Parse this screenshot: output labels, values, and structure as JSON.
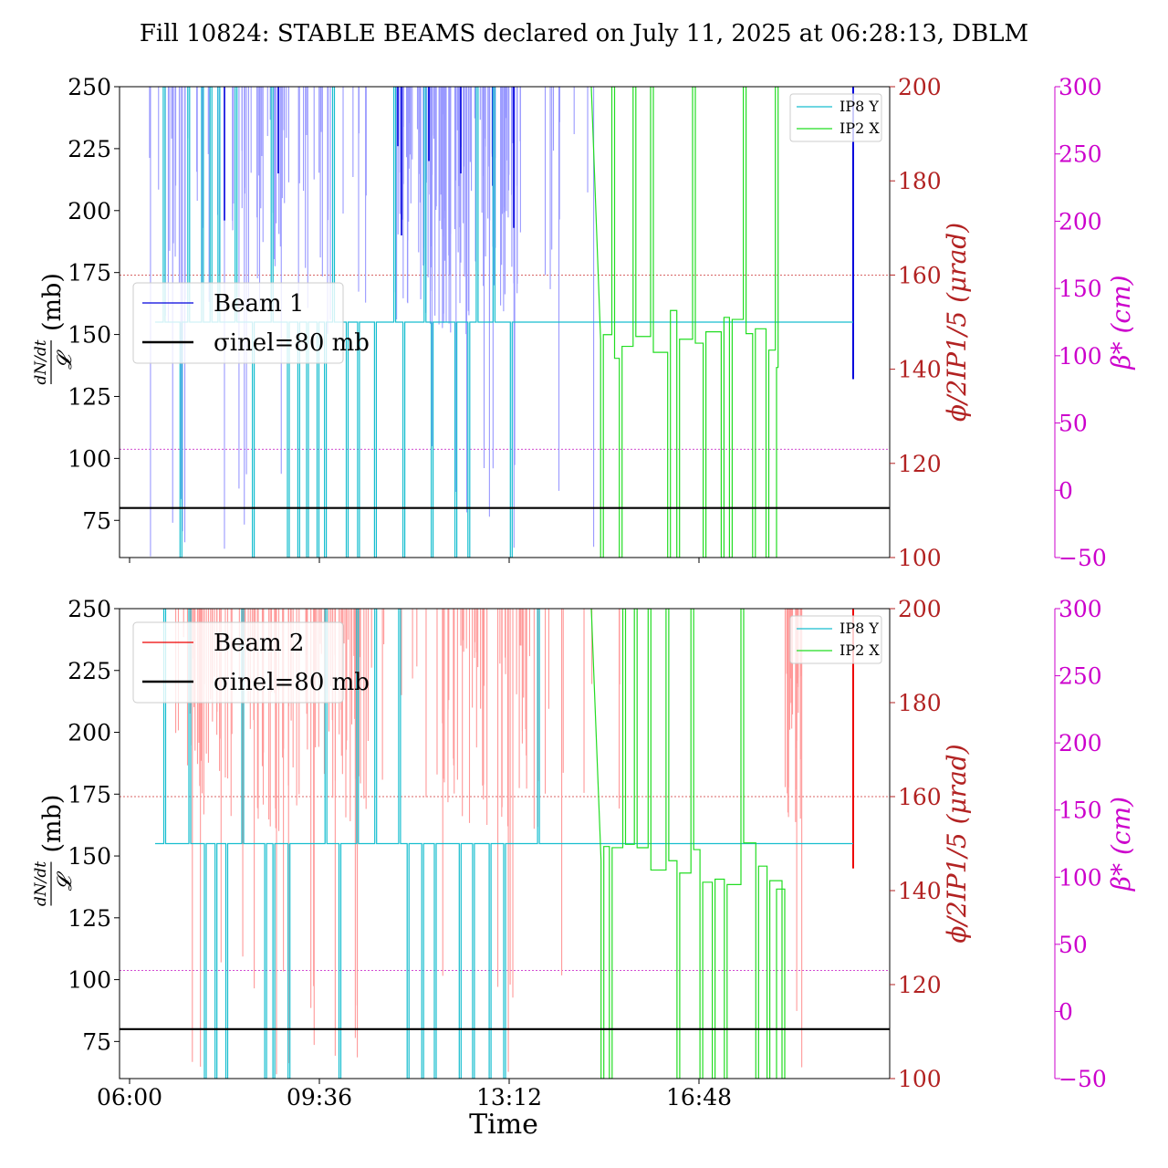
{
  "title": "Fill 10824: STABLE BEAMS declared on July 11, 2025 at 06:28:13, DBLM",
  "xlabel": "Time",
  "colors": {
    "beam1": "#0000dd",
    "beam1_light": "#9999ff",
    "beam2": "#ee0000",
    "beam2_light": "#ff9999",
    "ip8y": "#17becf",
    "ip2x": "#22dd22",
    "crossing_axis": "#b22222",
    "beta_axis": "#cc00cc",
    "sigma_line": "#000000"
  },
  "chart_data": [
    {
      "type": "line",
      "panel": "top",
      "x_ticks": [
        "06:00",
        "09:36",
        "13:12",
        "16:48"
      ],
      "ylabel_left": "dN/dt / 𝓛 (mb)",
      "ylim_left": [
        60,
        250
      ],
      "yticks_left": [
        "75",
        "100",
        "125",
        "150",
        "175",
        "200",
        "225",
        "250"
      ],
      "ylabel_right1": "ϕ/2IP1/5 (μrad)",
      "ylim_right1": [
        100,
        200
      ],
      "yticks_right1": [
        "100",
        "120",
        "140",
        "160",
        "180",
        "200"
      ],
      "ylabel_right2": "β* (cm)",
      "ylim_right2": [
        -50,
        300
      ],
      "yticks_right2": [
        "−50",
        "0",
        "50",
        "100",
        "150",
        "200",
        "250",
        "300"
      ],
      "legend_main": {
        "placement": "center-left",
        "entries": [
          {
            "label": "Beam 1",
            "color": "#0000dd"
          },
          {
            "label": "σinel=80 mb",
            "color": "#000000"
          }
        ]
      },
      "legend_secondary": {
        "placement": "top-right",
        "entries": [
          {
            "label": "IP8 Y",
            "color": "#17becf"
          },
          {
            "label": "IP2 X",
            "color": "#22dd22"
          }
        ]
      },
      "sigma_inel_mb": 80,
      "reference_lines_right1": [
        160,
        123
      ]
    },
    {
      "type": "line",
      "panel": "bottom",
      "x_ticks": [
        "06:00",
        "09:36",
        "13:12",
        "16:48"
      ],
      "ylabel_left": "dN/dt / 𝓛 (mb)",
      "ylim_left": [
        60,
        250
      ],
      "yticks_left": [
        "75",
        "100",
        "125",
        "150",
        "175",
        "200",
        "225",
        "250"
      ],
      "ylabel_right1": "ϕ/2IP1/5 (μrad)",
      "ylim_right1": [
        100,
        200
      ],
      "yticks_right1": [
        "100",
        "120",
        "140",
        "160",
        "180",
        "200"
      ],
      "ylabel_right2": "β* (cm)",
      "ylim_right2": [
        -50,
        300
      ],
      "yticks_right2": [
        "−50",
        "0",
        "50",
        "100",
        "150",
        "200",
        "250",
        "300"
      ],
      "legend_main": {
        "placement": "top-left",
        "entries": [
          {
            "label": "Beam 2",
            "color": "#ee0000"
          },
          {
            "label": "σinel=80 mb",
            "color": "#000000"
          }
        ]
      },
      "legend_secondary": {
        "placement": "top-right",
        "entries": [
          {
            "label": "IP8 Y",
            "color": "#17becf"
          },
          {
            "label": "IP2 X",
            "color": "#22dd22"
          }
        ]
      },
      "sigma_inel_mb": 80,
      "reference_lines_right1": [
        160,
        123
      ]
    }
  ]
}
